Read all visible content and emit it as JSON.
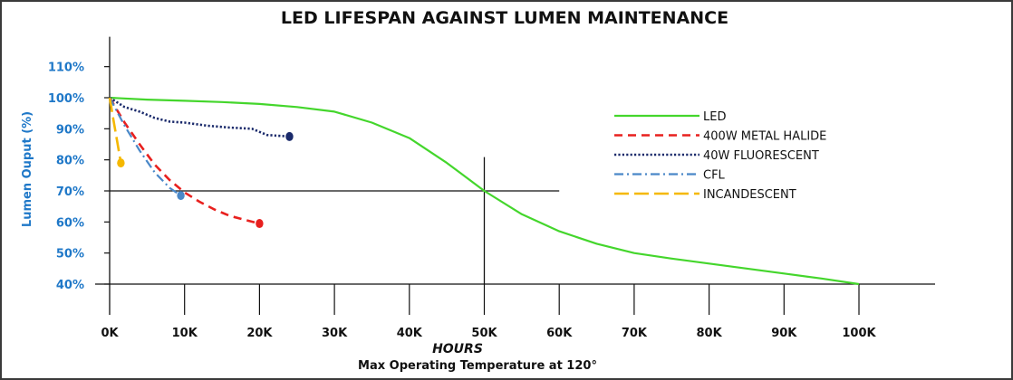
{
  "chart_data": {
    "type": "line",
    "title": "LED LIFESPAN AGAINST LUMEN MAINTENANCE",
    "xlabel": "HOURS",
    "ylabel": "Lumen Ouput (%)",
    "subtitle": "Max Operating Temperature at 120°",
    "xlim": [
      0,
      110000
    ],
    "ylim": [
      40,
      110
    ],
    "x_ticks": [
      {
        "value": 0,
        "label": "0K"
      },
      {
        "value": 10000,
        "label": "10K"
      },
      {
        "value": 20000,
        "label": "20K"
      },
      {
        "value": 30000,
        "label": "30K"
      },
      {
        "value": 40000,
        "label": "40K"
      },
      {
        "value": 50000,
        "label": "50K"
      },
      {
        "value": 60000,
        "label": "60K"
      },
      {
        "value": 70000,
        "label": "70K"
      },
      {
        "value": 80000,
        "label": "80K"
      },
      {
        "value": 90000,
        "label": "90K"
      },
      {
        "value": 100000,
        "label": "100K"
      }
    ],
    "y_ticks": [
      {
        "value": 40,
        "label": "40%"
      },
      {
        "value": 50,
        "label": "50%"
      },
      {
        "value": 60,
        "label": "60%"
      },
      {
        "value": 70,
        "label": "70%"
      },
      {
        "value": 80,
        "label": "80%"
      },
      {
        "value": 90,
        "label": "90%"
      },
      {
        "value": 100,
        "label": "100%"
      },
      {
        "value": 110,
        "label": "110%"
      }
    ],
    "grid": false,
    "legend_position": "right",
    "reference_lines": [
      {
        "orientation": "horizontal",
        "value": 70,
        "from": 0,
        "to": 60000
      },
      {
        "orientation": "vertical",
        "value": 50000,
        "from": 40,
        "to": 80
      }
    ],
    "series": [
      {
        "name": "LED",
        "color": "#44d62c",
        "dash": "solid",
        "end_marker": false,
        "points": [
          [
            0,
            100
          ],
          [
            5000,
            99.4
          ],
          [
            10000,
            99
          ],
          [
            15000,
            98.6
          ],
          [
            20000,
            98
          ],
          [
            25000,
            97
          ],
          [
            30000,
            95.5
          ],
          [
            35000,
            92
          ],
          [
            40000,
            87
          ],
          [
            45000,
            79
          ],
          [
            50000,
            70
          ],
          [
            55000,
            62.5
          ],
          [
            60000,
            57
          ],
          [
            65000,
            53
          ],
          [
            70000,
            50
          ],
          [
            75000,
            48.2
          ],
          [
            80000,
            46.6
          ],
          [
            85000,
            45
          ],
          [
            90000,
            43.4
          ],
          [
            95000,
            41.8
          ],
          [
            100000,
            40
          ]
        ]
      },
      {
        "name": "400W METAL HALIDE",
        "color": "#e8201e",
        "dash": "dashed",
        "end_marker": true,
        "points": [
          [
            0,
            100
          ],
          [
            2000,
            92
          ],
          [
            4000,
            85
          ],
          [
            6000,
            78.5
          ],
          [
            8000,
            73.5
          ],
          [
            10000,
            69.5
          ],
          [
            12000,
            66.5
          ],
          [
            14000,
            64
          ],
          [
            16000,
            62
          ],
          [
            18000,
            60.7
          ],
          [
            20000,
            59.5
          ]
        ]
      },
      {
        "name": "40W FLUORESCENT",
        "color": "#1a2a6b",
        "dash": "dotted",
        "end_marker": true,
        "points": [
          [
            0,
            100
          ],
          [
            2000,
            97
          ],
          [
            4000,
            95.5
          ],
          [
            6000,
            93.5
          ],
          [
            8000,
            92.3
          ],
          [
            10000,
            92
          ],
          [
            13000,
            91
          ],
          [
            16000,
            90.4
          ],
          [
            19000,
            90
          ],
          [
            21000,
            88
          ],
          [
            24000,
            87.5
          ]
        ]
      },
      {
        "name": "CFL",
        "color": "#4a88c8",
        "dash": "dashdot",
        "end_marker": true,
        "points": [
          [
            0,
            100
          ],
          [
            2000,
            91
          ],
          [
            4000,
            83
          ],
          [
            6000,
            76
          ],
          [
            8000,
            71
          ],
          [
            9500,
            68.5
          ]
        ]
      },
      {
        "name": "INCANDESCENT",
        "color": "#f5b800",
        "dash": "longdash",
        "end_marker": true,
        "points": [
          [
            0,
            100
          ],
          [
            500,
            93
          ],
          [
            1000,
            86
          ],
          [
            1500,
            79
          ]
        ]
      }
    ]
  }
}
